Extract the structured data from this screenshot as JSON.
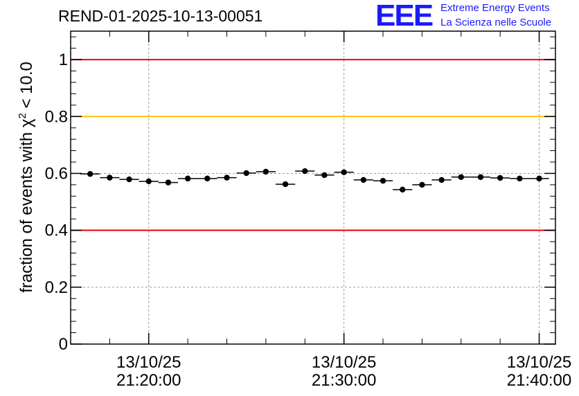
{
  "header": {
    "title": "REND-01-2025-10-13-00051",
    "logo_mark": "EEE",
    "logo_line1": "Extreme Energy Events",
    "logo_line2": "La Scienza nelle Scuole"
  },
  "axes": {
    "ylabel_main": "fraction of events with χ",
    "ylabel_sup": "2",
    "ylabel_tail": " < 10.0"
  },
  "chart_data": {
    "type": "scatter",
    "title": "REND-01-2025-10-13-00051",
    "ylabel": "fraction of events with χ² < 10.0",
    "ylim": [
      0,
      1.1
    ],
    "y_ticks": [
      0,
      0.2,
      0.4,
      0.6,
      0.8,
      1
    ],
    "y_tick_labels": [
      "0",
      "0.2",
      "0.4",
      "0.6",
      "0.8",
      "1"
    ],
    "xlim_minutes": [
      "21:16:00",
      "21:40:50"
    ],
    "x_ticks": [
      {
        "date": "13/10/25",
        "time": "21:20:00"
      },
      {
        "date": "13/10/25",
        "time": "21:30:00"
      },
      {
        "date": "13/10/25",
        "time": "21:40:00"
      }
    ],
    "grid": true,
    "reference_lines": [
      {
        "y": 1.0,
        "color": "#e8000b"
      },
      {
        "y": 0.8,
        "color": "#ffc000"
      },
      {
        "y": 0.4,
        "color": "#e8000b"
      }
    ],
    "series": [
      {
        "bin_width_minutes": 1,
        "x": [
          "21:17",
          "21:18",
          "21:19",
          "21:20",
          "21:21",
          "21:22",
          "21:23",
          "21:24",
          "21:25",
          "21:26",
          "21:27",
          "21:28",
          "21:29",
          "21:30",
          "21:31",
          "21:32",
          "21:33",
          "21:34",
          "21:35",
          "21:36",
          "21:37",
          "21:38",
          "21:39",
          "21:40"
        ],
        "y": [
          0.598,
          0.585,
          0.579,
          0.572,
          0.568,
          0.582,
          0.582,
          0.585,
          0.601,
          0.606,
          0.562,
          0.608,
          0.594,
          0.604,
          0.577,
          0.574,
          0.543,
          0.56,
          0.577,
          0.587,
          0.587,
          0.584,
          0.582,
          0.582
        ]
      }
    ]
  }
}
